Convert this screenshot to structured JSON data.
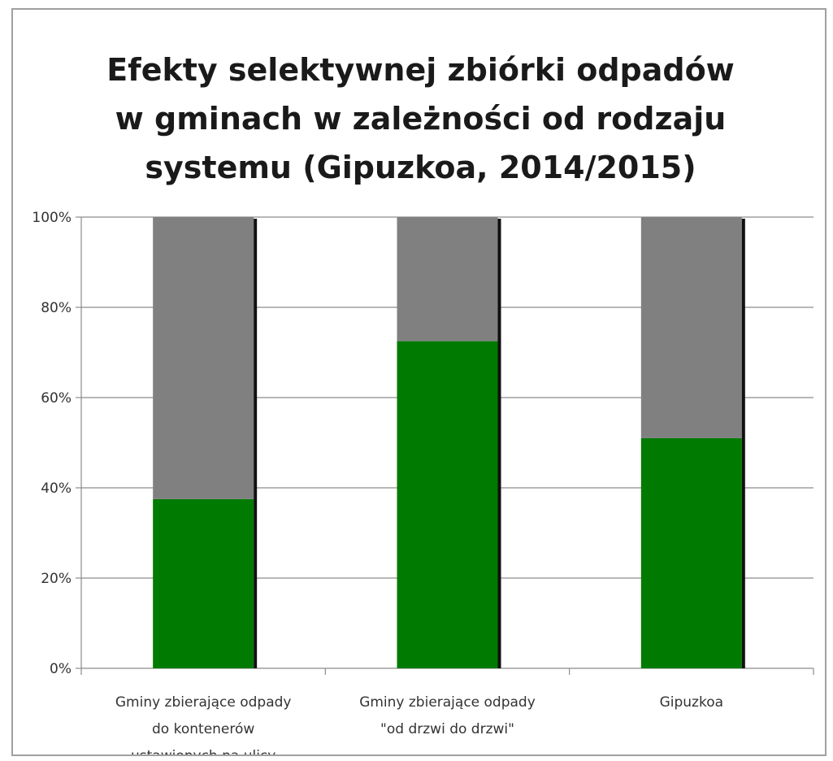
{
  "chart_data": {
    "type": "bar",
    "stacked": true,
    "percent_stacked": true,
    "title_lines": [
      "Efekty selektywnej zbiórki odpadów",
      "w gminach w zależności od rodzaju",
      "systemu (Gipuzkoa, 2014/2015)"
    ],
    "categories": [
      [
        "Gminy zbierające odpady",
        "do kontenerów",
        "ustawionych na ulicy"
      ],
      [
        "Gminy zbierające odpady",
        "\"od drzwi do drzwi\""
      ],
      [
        "Gipuzkoa"
      ]
    ],
    "series": [
      {
        "values": [
          37.5,
          72.5,
          51.0
        ],
        "color": "#007a00"
      },
      {
        "values": [
          62.5,
          27.5,
          49.0
        ],
        "color": "#808080"
      }
    ],
    "y_ticks": [
      "0%",
      "20%",
      "40%",
      "60%",
      "80%",
      "100%"
    ],
    "ylim": [
      0,
      100
    ],
    "grid": true,
    "legend": "none"
  }
}
